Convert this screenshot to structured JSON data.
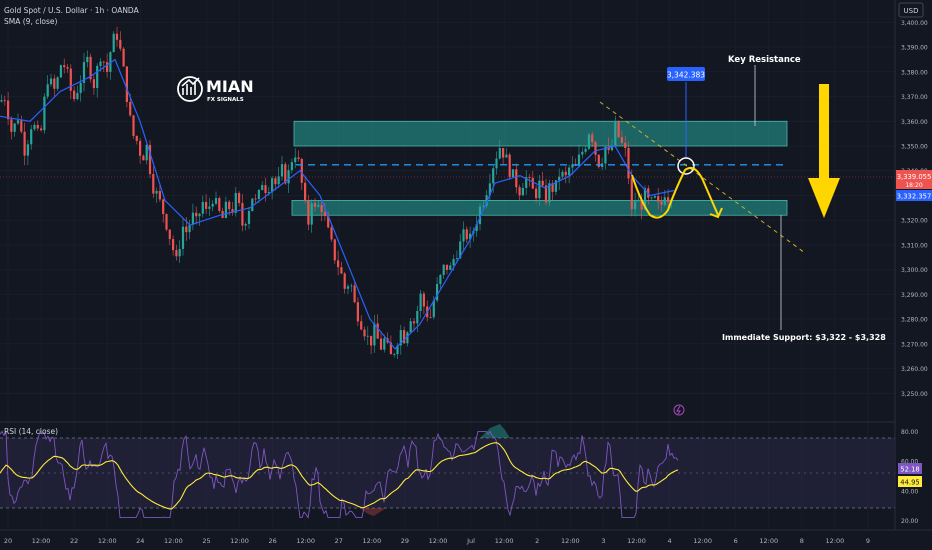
{
  "header": {
    "symbol_title": "Gold Spot / U.S. Dollar · 1h · OANDA",
    "sma_label": "SMA (9, close)",
    "rsi_label": "RSI (14, close)",
    "currency": "USD"
  },
  "logo": {
    "brand": "MIAN",
    "sub": "FX SIGNALS"
  },
  "annotations": {
    "key_resistance": "Key Resistance",
    "immediate_support": "Immediate Support: $3,322 - $3,328",
    "target_label": "3,342.383"
  },
  "price_labels": {
    "current": "3,339.055",
    "countdown": "18:20",
    "sma": "3,332.357",
    "rsi": "52.18",
    "rsi_ma": "44.95"
  },
  "colors": {
    "background": "#131722",
    "up": "#26a69a",
    "down": "#ef5350",
    "sma": "#2962ff",
    "zone": "#26a69a",
    "arrow": "#ffd600",
    "rsi_line": "#7e57c2",
    "rsi_ma": "#ffeb3b"
  },
  "chart_data": {
    "type": "candlestick",
    "ylim": [
      3240,
      3405
    ],
    "y_ticks": [
      3250,
      3260,
      3270,
      3280,
      3290,
      3300,
      3310,
      3320,
      3330,
      3340,
      3350,
      3360,
      3370,
      3380,
      3390,
      3400
    ],
    "x_ticks": [
      "20",
      "12:00",
      "22",
      "12:00",
      "24",
      "12:00",
      "25",
      "12:00",
      "26",
      "12:00",
      "27",
      "12:00",
      "29",
      "12:00",
      "Jul",
      "12:00",
      "2",
      "12:00",
      "3",
      "12:00",
      "4",
      "12:00",
      "6",
      "12:00",
      "8",
      "12:00",
      "9"
    ],
    "price_path": [
      [
        0,
        3368
      ],
      [
        5,
        3370
      ],
      [
        12,
        3355
      ],
      [
        18,
        3362
      ],
      [
        25,
        3348
      ],
      [
        32,
        3360
      ],
      [
        40,
        3352
      ],
      [
        47,
        3378
      ],
      [
        55,
        3372
      ],
      [
        62,
        3385
      ],
      [
        68,
        3378
      ],
      [
        73,
        3368
      ],
      [
        80,
        3376
      ],
      [
        87,
        3385
      ],
      [
        94,
        3375
      ],
      [
        101,
        3388
      ],
      [
        107,
        3380
      ],
      [
        112,
        3392
      ],
      [
        117,
        3395
      ],
      [
        122,
        3385
      ],
      [
        127,
        3370
      ],
      [
        132,
        3355
      ],
      [
        137,
        3352
      ],
      [
        142,
        3345
      ],
      [
        147,
        3350
      ],
      [
        152,
        3335
      ],
      [
        157,
        3330
      ],
      [
        162,
        3325
      ],
      [
        167,
        3318
      ],
      [
        172,
        3310
      ],
      [
        177,
        3302
      ],
      [
        182,
        3318
      ],
      [
        187,
        3315
      ],
      [
        192,
        3322
      ],
      [
        197,
        3318
      ],
      [
        202,
        3328
      ],
      [
        207,
        3322
      ],
      [
        212,
        3330
      ],
      [
        217,
        3325
      ],
      [
        222,
        3320
      ],
      [
        227,
        3326
      ],
      [
        232,
        3324
      ],
      [
        237,
        3330
      ],
      [
        242,
        3318
      ],
      [
        247,
        3322
      ],
      [
        252,
        3330
      ],
      [
        257,
        3326
      ],
      [
        262,
        3336
      ],
      [
        267,
        3332
      ],
      [
        272,
        3338
      ],
      [
        277,
        3333
      ],
      [
        282,
        3340
      ],
      [
        287,
        3336
      ],
      [
        292,
        3345
      ],
      [
        296,
        3348
      ],
      [
        300,
        3340
      ],
      [
        304,
        3328
      ],
      [
        308,
        3318
      ],
      [
        312,
        3330
      ],
      [
        316,
        3322
      ],
      [
        320,
        3328
      ],
      [
        325,
        3320
      ],
      [
        330,
        3312
      ],
      [
        335,
        3305
      ],
      [
        340,
        3300
      ],
      [
        345,
        3292
      ],
      [
        350,
        3296
      ],
      [
        355,
        3285
      ],
      [
        360,
        3280
      ],
      [
        365,
        3275
      ],
      [
        370,
        3270
      ],
      [
        375,
        3276
      ],
      [
        380,
        3268
      ],
      [
        385,
        3272
      ],
      [
        390,
        3264
      ],
      [
        395,
        3268
      ],
      [
        400,
        3276
      ],
      [
        405,
        3272
      ],
      [
        410,
        3282
      ],
      [
        415,
        3278
      ],
      [
        420,
        3290
      ],
      [
        425,
        3284
      ],
      [
        430,
        3280
      ],
      [
        435,
        3290
      ],
      [
        440,
        3296
      ],
      [
        445,
        3302
      ],
      [
        450,
        3300
      ],
      [
        455,
        3306
      ],
      [
        460,
        3310
      ],
      [
        465,
        3315
      ],
      [
        470,
        3312
      ],
      [
        475,
        3318
      ],
      [
        480,
        3325
      ],
      [
        485,
        3330
      ],
      [
        490,
        3338
      ],
      [
        495,
        3345
      ],
      [
        500,
        3350
      ],
      [
        505,
        3346
      ],
      [
        510,
        3340
      ],
      [
        515,
        3336
      ],
      [
        520,
        3332
      ],
      [
        525,
        3338
      ],
      [
        530,
        3334
      ],
      [
        535,
        3330
      ],
      [
        540,
        3335
      ],
      [
        545,
        3328
      ],
      [
        550,
        3334
      ],
      [
        555,
        3332
      ],
      [
        560,
        3340
      ],
      [
        565,
        3336
      ],
      [
        570,
        3342
      ],
      [
        575,
        3340
      ],
      [
        580,
        3346
      ],
      [
        585,
        3350
      ],
      [
        590,
        3358
      ],
      [
        595,
        3348
      ],
      [
        600,
        3342
      ],
      [
        605,
        3350
      ],
      [
        610,
        3345
      ],
      [
        615,
        3358
      ],
      [
        620,
        3352
      ],
      [
        625,
        3348
      ],
      [
        628,
        3340
      ],
      [
        632,
        3322
      ],
      [
        636,
        3330
      ],
      [
        640,
        3325
      ],
      [
        645,
        3330
      ],
      [
        650,
        3326
      ],
      [
        655,
        3328
      ],
      [
        660,
        3324
      ],
      [
        665,
        3332
      ],
      [
        670,
        3328
      ],
      [
        674,
        3336
      ]
    ],
    "sma_path": [
      [
        0,
        3362
      ],
      [
        30,
        3360
      ],
      [
        60,
        3372
      ],
      [
        90,
        3378
      ],
      [
        115,
        3385
      ],
      [
        140,
        3360
      ],
      [
        165,
        3328
      ],
      [
        190,
        3318
      ],
      [
        220,
        3322
      ],
      [
        250,
        3325
      ],
      [
        280,
        3334
      ],
      [
        300,
        3340
      ],
      [
        320,
        3330
      ],
      [
        345,
        3305
      ],
      [
        370,
        3280
      ],
      [
        395,
        3268
      ],
      [
        420,
        3278
      ],
      [
        445,
        3295
      ],
      [
        470,
        3312
      ],
      [
        495,
        3335
      ],
      [
        520,
        3338
      ],
      [
        545,
        3333
      ],
      [
        570,
        3338
      ],
      [
        595,
        3348
      ],
      [
        615,
        3350
      ],
      [
        632,
        3338
      ],
      [
        650,
        3330
      ],
      [
        674,
        3332
      ]
    ],
    "zones": [
      {
        "from": 3350,
        "to": 3360,
        "x_from": 294,
        "x_to": 787
      },
      {
        "from": 3322,
        "to": 3328,
        "x_from": 292,
        "x_to": 787
      }
    ],
    "dashed_level": 3342.383,
    "rsi": {
      "ylim": [
        15,
        85
      ],
      "ticks": [
        20,
        40,
        60,
        80
      ],
      "overbought": 70,
      "oversold": 30,
      "last": 52.18,
      "ma_last": 44.95
    }
  }
}
